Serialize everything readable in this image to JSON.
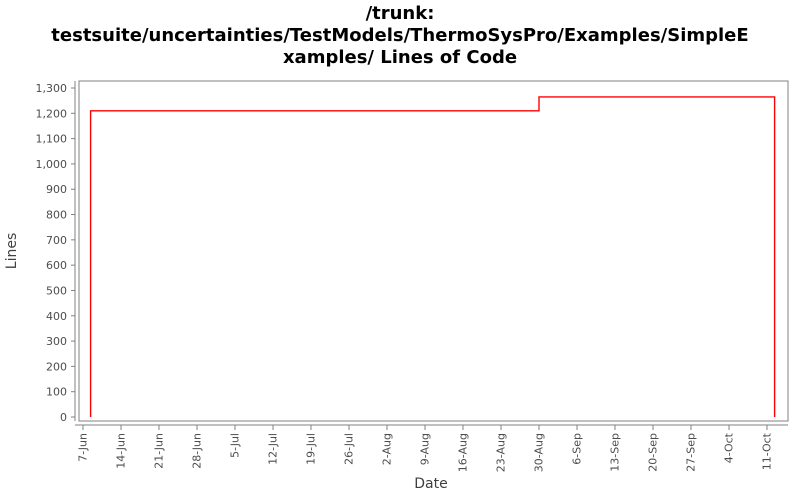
{
  "page": {
    "background_color": "#ffffff"
  },
  "title": {
    "lines": [
      "/trunk:",
      "testsuite/uncertainties/TestModels/ThermoSysPro/Examples/SimpleE",
      "xamples/ Lines of Code"
    ]
  },
  "chart_data": {
    "type": "line",
    "subtype": "step",
    "title": "/trunk: testsuite/uncertainties/TestModels/ThermoSysPro/Examples/SimpleExamples/ Lines of Code",
    "xlabel": "Date",
    "ylabel": "Lines",
    "x_tick_labels": [
      "7-Jun",
      "14-Jun",
      "21-Jun",
      "28-Jun",
      "5-Jul",
      "12-Jul",
      "19-Jul",
      "26-Jul",
      "2-Aug",
      "9-Aug",
      "16-Aug",
      "23-Aug",
      "30-Aug",
      "6-Sep",
      "13-Sep",
      "20-Sep",
      "27-Sep",
      "4-Oct",
      "11-Oct"
    ],
    "x_tick_interval_days": 7,
    "x_unit": "days since 7-Jun",
    "y_tick_labels": [
      "0",
      "100",
      "200",
      "300",
      "400",
      "500",
      "600",
      "700",
      "800",
      "900",
      "1,000",
      "1,100",
      "1,200",
      "1,300"
    ],
    "ylim": [
      0,
      1300
    ],
    "y_tick_step": 100,
    "grid": false,
    "legend_position": "none",
    "axis_color": "#808080",
    "tick_label_color": "#4d4d4d",
    "axis_title_color": "#404040",
    "series": [
      {
        "name": "Lines of Code",
        "color": "#ff0000",
        "points_day_value": [
          [
            1.4,
            0
          ],
          [
            1.4,
            1210
          ],
          [
            84,
            1210
          ],
          [
            84,
            1265
          ],
          [
            127.4,
            1265
          ],
          [
            127.4,
            0
          ]
        ]
      }
    ]
  }
}
